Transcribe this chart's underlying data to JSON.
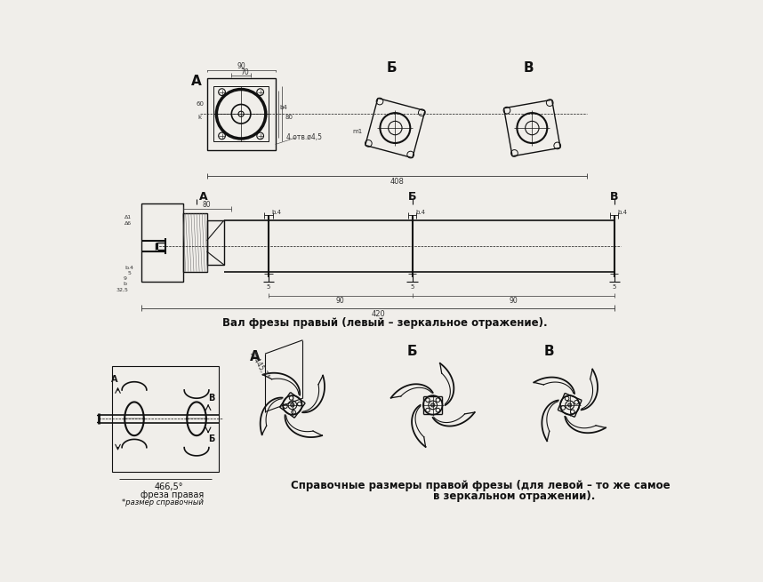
{
  "background_color": "#f0eeea",
  "caption1": "Вал фрезы правый (левый – зеркальное отражение).",
  "caption2": "Справочные размеры правой фрезы (для левой – то же самое",
  "caption3": "в зеркальном отражении).",
  "label_freza": "фреза правая",
  "label_razmer": "*размер справочный",
  "label_466": "466,5°",
  "label_A": "A",
  "label_B": "Б",
  "label_V": "В",
  "line_color": "#111111",
  "dim_color": "#333333"
}
